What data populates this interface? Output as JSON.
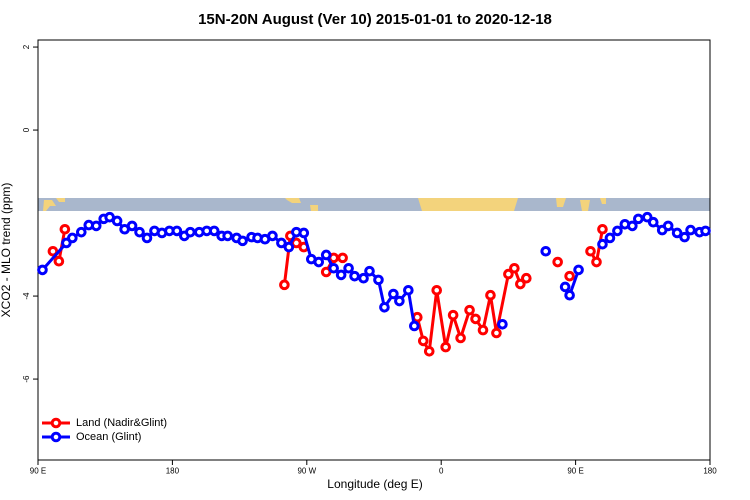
{
  "chart_data": {
    "type": "line",
    "title": "15N-20N August (Ver 10)   2015-01-01 to 2020-12-18",
    "x_label": "Longitude (deg E)",
    "y_label": "XCO2 - MLO trend (ppm)",
    "xlim": [
      90,
      540
    ],
    "xticks": [
      {
        "value": 90,
        "label": "90 E"
      },
      {
        "value": 180,
        "label": "180"
      },
      {
        "value": 270,
        "label": "90 W"
      },
      {
        "value": 360,
        "label": "0"
      },
      {
        "value": 450,
        "label": "90 E"
      },
      {
        "value": 540,
        "label": "180"
      }
    ],
    "ylim": [
      -7.95,
      2.17
    ],
    "yticks": [
      -6,
      -4,
      0,
      2
    ],
    "legend": "bottom-left",
    "series": [
      {
        "name": "Land (Nadir&Glint)",
        "color": "#ff0000",
        "x": [
          100,
          104,
          108,
          null,
          255,
          259,
          263,
          268,
          null,
          283,
          288,
          294,
          null,
          344,
          348,
          352,
          357,
          363,
          368,
          373,
          379,
          383,
          388,
          393,
          397,
          405,
          409,
          413,
          417,
          null,
          438,
          null,
          446,
          null,
          460,
          464,
          468
        ],
        "values": [
          -2.92,
          -3.16,
          -2.39,
          null,
          -3.73,
          -2.55,
          -2.72,
          -2.82,
          null,
          -3.42,
          -3.08,
          -3.08,
          null,
          -4.51,
          -5.08,
          -5.33,
          -3.86,
          -5.23,
          -4.46,
          -5.01,
          -4.34,
          -4.55,
          -4.82,
          -3.98,
          -4.89,
          -3.47,
          -3.33,
          -3.71,
          -3.57,
          null,
          -3.18,
          null,
          -3.52,
          null,
          -2.92,
          -3.18,
          -2.39
        ]
      },
      {
        "name": "Ocean (Glint)",
        "color": "#0000ff",
        "x": [
          93,
          109,
          113,
          119,
          124,
          129,
          134,
          138,
          143,
          148,
          153,
          158,
          163,
          168,
          173,
          178,
          183,
          188,
          192,
          198,
          203,
          208,
          213,
          217,
          223,
          227,
          233,
          237,
          242,
          247,
          253,
          258,
          263,
          268,
          273,
          278,
          283,
          288,
          293,
          298,
          302,
          308,
          312,
          318,
          322,
          328,
          332,
          338,
          342,
          null,
          401,
          null,
          430,
          null,
          443,
          446,
          452,
          null,
          468,
          473,
          478,
          483,
          488,
          492,
          498,
          502,
          508,
          512,
          518,
          523,
          527,
          533,
          537
        ],
        "values": [
          -3.37,
          -2.72,
          -2.6,
          -2.46,
          -2.29,
          -2.31,
          -2.14,
          -2.1,
          -2.19,
          -2.39,
          -2.31,
          -2.46,
          -2.6,
          -2.43,
          -2.48,
          -2.43,
          -2.43,
          -2.55,
          -2.46,
          -2.46,
          -2.43,
          -2.43,
          -2.55,
          -2.55,
          -2.6,
          -2.67,
          -2.58,
          -2.6,
          -2.63,
          -2.55,
          -2.72,
          -2.82,
          -2.46,
          -2.48,
          -3.11,
          -3.18,
          -3.01,
          -3.33,
          -3.49,
          -3.33,
          -3.52,
          -3.57,
          -3.4,
          -3.61,
          -4.27,
          -3.95,
          -4.12,
          -3.86,
          -4.72,
          null,
          -4.68,
          null,
          -2.92,
          null,
          -3.78,
          -3.98,
          -3.37,
          null,
          -2.75,
          -2.6,
          -2.43,
          -2.27,
          -2.31,
          -2.14,
          -2.1,
          -2.22,
          -2.41,
          -2.31,
          -2.48,
          -2.58,
          -2.41,
          -2.46,
          -2.43
        ]
      }
    ]
  }
}
